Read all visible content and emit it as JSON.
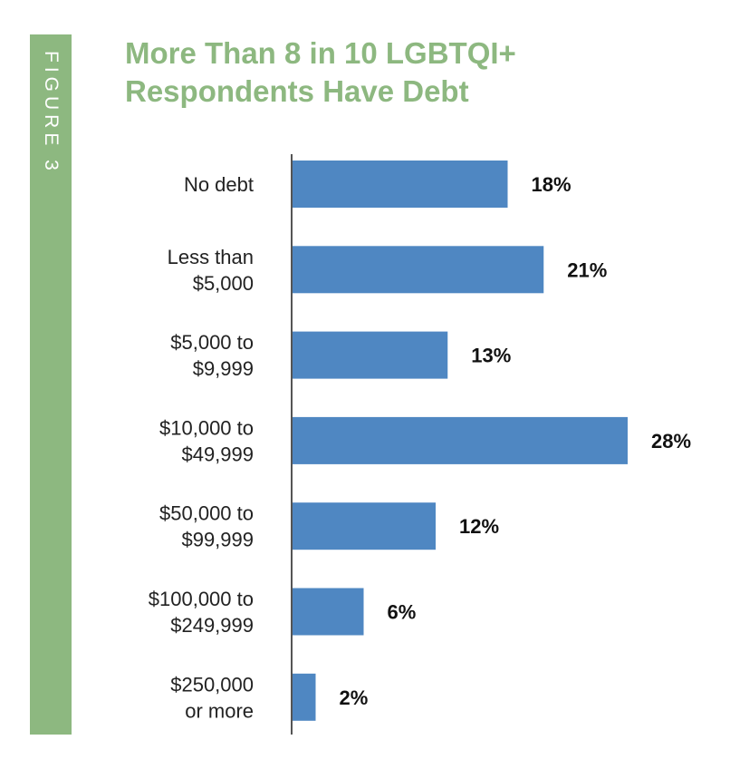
{
  "figure_label": "FIGURE 3",
  "colors": {
    "accent_green": "#8db880",
    "bar_blue": "#4f87c2",
    "axis": "#555555"
  },
  "chart_data": {
    "type": "bar",
    "orientation": "horizontal",
    "title": "More Than 8 in 10 LGBTQI+ Respondents Have Debt",
    "categories": [
      [
        "No debt"
      ],
      [
        "Less than",
        "$5,000"
      ],
      [
        "$5,000 to",
        "$9,999"
      ],
      [
        "$10,000 to",
        "$49,999"
      ],
      [
        "$50,000 to",
        "$99,999"
      ],
      [
        "$100,000 to",
        "$249,999"
      ],
      [
        "$250,000",
        "or more"
      ]
    ],
    "values": [
      18,
      21,
      13,
      28,
      12,
      6,
      2
    ],
    "value_labels": [
      "18%",
      "21%",
      "13%",
      "28%",
      "12%",
      "6%",
      "2%"
    ],
    "unit": "%",
    "xlim": [
      0,
      28
    ],
    "grid": false,
    "legend": "none"
  }
}
